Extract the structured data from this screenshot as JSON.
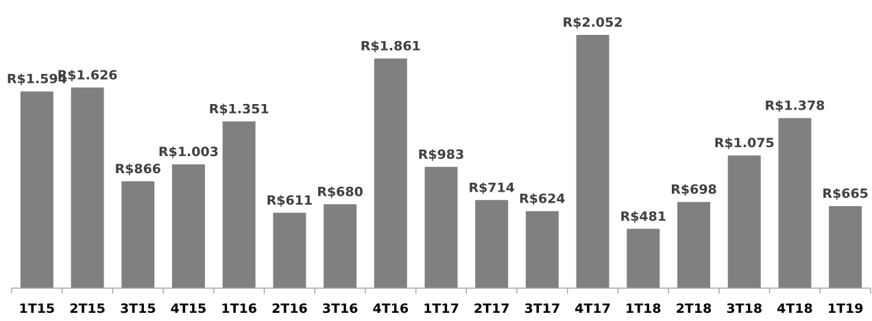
{
  "chart_data": {
    "type": "bar",
    "categories": [
      "1T15",
      "2T15",
      "3T15",
      "4T15",
      "1T16",
      "2T16",
      "3T16",
      "4T16",
      "1T17",
      "2T17",
      "3T17",
      "4T17",
      "1T18",
      "2T18",
      "3T18",
      "4T18",
      "1T19"
    ],
    "values": [
      1594,
      1626,
      866,
      1003,
      1351,
      611,
      680,
      1861,
      983,
      714,
      624,
      2052,
      481,
      698,
      1075,
      1378,
      665
    ],
    "data_labels": [
      "R$1.594",
      "R$1.626",
      "R$866",
      "R$1.003",
      "R$1.351",
      "R$611",
      "R$680",
      "R$1.861",
      "R$983",
      "R$714",
      "R$624",
      "R$2.052",
      "R$481",
      "R$698",
      "R$1.075",
      "R$1.378",
      "R$665"
    ],
    "title": "",
    "xlabel": "",
    "ylabel": "",
    "ylim": [
      0,
      2052
    ],
    "grid": false,
    "legend": "none",
    "colors": {
      "bar": "#808080",
      "data_label": "#404040",
      "tick_label": "#000000",
      "axis": "#a6a6a6"
    }
  }
}
